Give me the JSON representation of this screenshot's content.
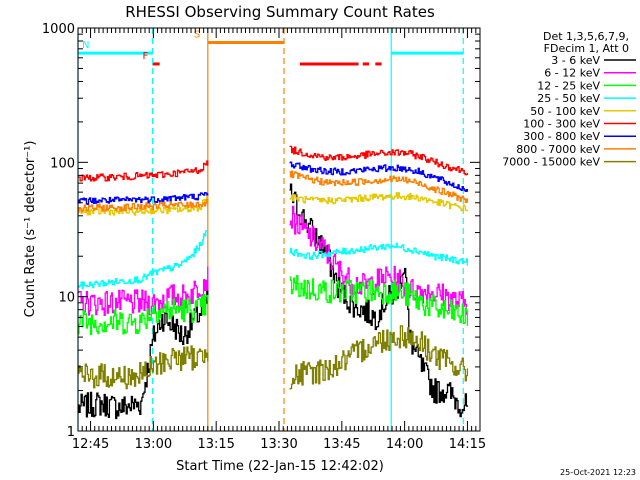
{
  "chart_data": {
    "type": "line",
    "title": "RHESSI Observing Summary Count Rates",
    "xlabel": "Start Time (22-Jan-15 12:42:02)",
    "ylabel": "Count Rate (s⁻¹ detector⁻¹)",
    "x_unit": "minutes after 12:42:02",
    "xlim": [
      0,
      96
    ],
    "ylim": [
      1,
      1000
    ],
    "yscale": "log",
    "x_ticks": [
      {
        "label": "12:45",
        "t": 3
      },
      {
        "label": "13:00",
        "t": 18
      },
      {
        "label": "13:15",
        "t": 33
      },
      {
        "label": "13:30",
        "t": 48
      },
      {
        "label": "13:45",
        "t": 63
      },
      {
        "label": "14:00",
        "t": 78
      },
      {
        "label": "14:15",
        "t": 93
      }
    ],
    "y_ticks": [
      {
        "label": "1",
        "v": 1
      },
      {
        "label": "10",
        "v": 10
      },
      {
        "label": "100",
        "v": 100
      },
      {
        "label": "1000",
        "v": 1000
      }
    ],
    "legend_header": [
      "Det 1,3,5,6,7,9,",
      "FDecim 1, Att 0"
    ],
    "legend_placement": "right",
    "data_gaps": [
      [
        31,
        50.5
      ]
    ],
    "series": [
      {
        "name": "3 - 6 keV",
        "color": "#000000",
        "values": [
          [
            0,
            1.5
          ],
          [
            5,
            1.6
          ],
          [
            10,
            1.5
          ],
          [
            15,
            1.6
          ],
          [
            18,
            5
          ],
          [
            20,
            7
          ],
          [
            23,
            6
          ],
          [
            25,
            5
          ],
          [
            28,
            7
          ],
          [
            30,
            8
          ],
          [
            31,
            10
          ],
          [
            50.5,
            60
          ],
          [
            53,
            42
          ],
          [
            56,
            30
          ],
          [
            59,
            22
          ],
          [
            62,
            12
          ],
          [
            65,
            9
          ],
          [
            68,
            8
          ],
          [
            71,
            7
          ],
          [
            73,
            9
          ],
          [
            76,
            11
          ],
          [
            78,
            18
          ],
          [
            79,
            5
          ],
          [
            82,
            3
          ],
          [
            85,
            2
          ],
          [
            88,
            2
          ],
          [
            91,
            1.6
          ],
          [
            93,
            1.5
          ]
        ]
      },
      {
        "name": "6 - 12 keV",
        "color": "#ff00ff",
        "values": [
          [
            0,
            9
          ],
          [
            5,
            9
          ],
          [
            10,
            9
          ],
          [
            15,
            9
          ],
          [
            18,
            9
          ],
          [
            22,
            10
          ],
          [
            26,
            10
          ],
          [
            29,
            12
          ],
          [
            31,
            14
          ],
          [
            50.5,
            40
          ],
          [
            53,
            33
          ],
          [
            56,
            27
          ],
          [
            59,
            22
          ],
          [
            62,
            16
          ],
          [
            65,
            13
          ],
          [
            68,
            12
          ],
          [
            71,
            13
          ],
          [
            74,
            14
          ],
          [
            77,
            13
          ],
          [
            78,
            12
          ],
          [
            80,
            11
          ],
          [
            84,
            11
          ],
          [
            88,
            10
          ],
          [
            91,
            9
          ],
          [
            93,
            9
          ]
        ]
      },
      {
        "name": "12 - 25 keV",
        "color": "#00ff00",
        "values": [
          [
            0,
            6.5
          ],
          [
            5,
            6.5
          ],
          [
            10,
            6.5
          ],
          [
            15,
            6.5
          ],
          [
            18,
            8
          ],
          [
            22,
            8
          ],
          [
            26,
            8
          ],
          [
            29,
            8
          ],
          [
            31,
            9
          ],
          [
            50.5,
            12
          ],
          [
            55,
            11.5
          ],
          [
            60,
            11
          ],
          [
            65,
            11
          ],
          [
            70,
            11
          ],
          [
            75,
            11
          ],
          [
            78,
            10.5
          ],
          [
            82,
            9
          ],
          [
            86,
            8
          ],
          [
            90,
            7.5
          ],
          [
            93,
            7
          ]
        ]
      },
      {
        "name": "25 - 50 keV",
        "color": "#00ffff",
        "values": [
          [
            0,
            12
          ],
          [
            5,
            12.5
          ],
          [
            10,
            13
          ],
          [
            15,
            13.5
          ],
          [
            18,
            15
          ],
          [
            21,
            16
          ],
          [
            24,
            17
          ],
          [
            27,
            20
          ],
          [
            29,
            24
          ],
          [
            31,
            32
          ],
          [
            50.5,
            22
          ],
          [
            55,
            20
          ],
          [
            60,
            21
          ],
          [
            65,
            22
          ],
          [
            70,
            23
          ],
          [
            75,
            24
          ],
          [
            78,
            23
          ],
          [
            81,
            22
          ],
          [
            85,
            20
          ],
          [
            89,
            19
          ],
          [
            93,
            18
          ]
        ]
      },
      {
        "name": "50 - 100 keV",
        "color": "#e6c800",
        "values": [
          [
            0,
            43
          ],
          [
            5,
            43
          ],
          [
            10,
            43
          ],
          [
            15,
            43
          ],
          [
            18,
            44
          ],
          [
            22,
            44
          ],
          [
            26,
            45
          ],
          [
            29,
            46
          ],
          [
            31,
            57
          ],
          [
            50.5,
            55
          ],
          [
            55,
            52
          ],
          [
            60,
            52
          ],
          [
            65,
            53
          ],
          [
            70,
            55
          ],
          [
            75,
            56
          ],
          [
            78,
            56
          ],
          [
            82,
            54
          ],
          [
            86,
            50
          ],
          [
            90,
            47
          ],
          [
            93,
            45
          ]
        ]
      },
      {
        "name": "100 - 300 keV",
        "color": "#ff0000",
        "values": [
          [
            0,
            76
          ],
          [
            5,
            77
          ],
          [
            10,
            78
          ],
          [
            15,
            79
          ],
          [
            18,
            80
          ],
          [
            22,
            82
          ],
          [
            26,
            85
          ],
          [
            29,
            88
          ],
          [
            31,
            100
          ],
          [
            50.5,
            125
          ],
          [
            55,
            115
          ],
          [
            60,
            108
          ],
          [
            65,
            110
          ],
          [
            70,
            115
          ],
          [
            75,
            118
          ],
          [
            78,
            118
          ],
          [
            82,
            110
          ],
          [
            86,
            98
          ],
          [
            90,
            90
          ],
          [
            93,
            85
          ]
        ]
      },
      {
        "name": "300 - 800 keV",
        "color": "#0000ff",
        "values": [
          [
            0,
            51
          ],
          [
            5,
            52
          ],
          [
            10,
            52
          ],
          [
            15,
            53
          ],
          [
            18,
            53
          ],
          [
            22,
            54
          ],
          [
            26,
            55
          ],
          [
            29,
            56
          ],
          [
            31,
            58
          ],
          [
            50.5,
            98
          ],
          [
            55,
            90
          ],
          [
            60,
            85
          ],
          [
            65,
            86
          ],
          [
            70,
            89
          ],
          [
            75,
            91
          ],
          [
            78,
            90
          ],
          [
            82,
            84
          ],
          [
            86,
            75
          ],
          [
            90,
            67
          ],
          [
            93,
            62
          ]
        ]
      },
      {
        "name": "800 - 7000 keV",
        "color": "#ff8000",
        "values": [
          [
            0,
            45
          ],
          [
            5,
            46
          ],
          [
            10,
            46
          ],
          [
            15,
            47
          ],
          [
            18,
            47
          ],
          [
            22,
            48
          ],
          [
            26,
            48
          ],
          [
            29,
            49
          ],
          [
            31,
            50
          ],
          [
            50.5,
            82
          ],
          [
            55,
            75
          ],
          [
            60,
            70
          ],
          [
            65,
            71
          ],
          [
            70,
            73
          ],
          [
            75,
            75
          ],
          [
            78,
            74
          ],
          [
            82,
            69
          ],
          [
            86,
            62
          ],
          [
            90,
            56
          ],
          [
            93,
            52
          ]
        ]
      },
      {
        "name": "7000 - 15000 keV",
        "color": "#808000",
        "values": [
          [
            0,
            2.5
          ],
          [
            5,
            2.6
          ],
          [
            10,
            2.5
          ],
          [
            15,
            2.6
          ],
          [
            18,
            3
          ],
          [
            22,
            3.5
          ],
          [
            26,
            3.5
          ],
          [
            29,
            3.5
          ],
          [
            31,
            4
          ],
          [
            50.5,
            2.5
          ],
          [
            55,
            2.7
          ],
          [
            60,
            2.9
          ],
          [
            65,
            3.5
          ],
          [
            70,
            4.5
          ],
          [
            75,
            5
          ],
          [
            78,
            5.2
          ],
          [
            82,
            4.5
          ],
          [
            86,
            3.5
          ],
          [
            90,
            3
          ],
          [
            93,
            2.7
          ]
        ]
      }
    ],
    "flags": [
      {
        "name": "N",
        "color": "#00ffff",
        "level": 650,
        "intervals": [
          [
            0,
            17.8
          ],
          [
            74.8,
            92
          ]
        ]
      },
      {
        "name": "S",
        "color": "#ff8000",
        "level": 780,
        "intervals": [
          [
            31,
            49.2
          ]
        ]
      },
      {
        "name": "F",
        "color": "#ff0000",
        "level": 540,
        "intervals": [
          [
            17.8,
            19.5
          ],
          [
            53,
            67
          ],
          [
            68,
            69.5
          ],
          [
            71,
            72.5
          ]
        ]
      }
    ],
    "vlines": [
      {
        "t": 0,
        "color": "#00ffff",
        "style": "solid"
      },
      {
        "t": 17.8,
        "color": "#00ffff",
        "style": "dashed"
      },
      {
        "t": 31,
        "color": "#ff8000",
        "style": "solid"
      },
      {
        "t": 49.2,
        "color": "#ff8000",
        "style": "dashed"
      },
      {
        "t": 74.8,
        "color": "#00ffff",
        "style": "solid"
      },
      {
        "t": 92,
        "color": "#00ffff",
        "style": "dashed"
      }
    ],
    "footer_timestamp": "25-Oct-2021 12:23"
  }
}
